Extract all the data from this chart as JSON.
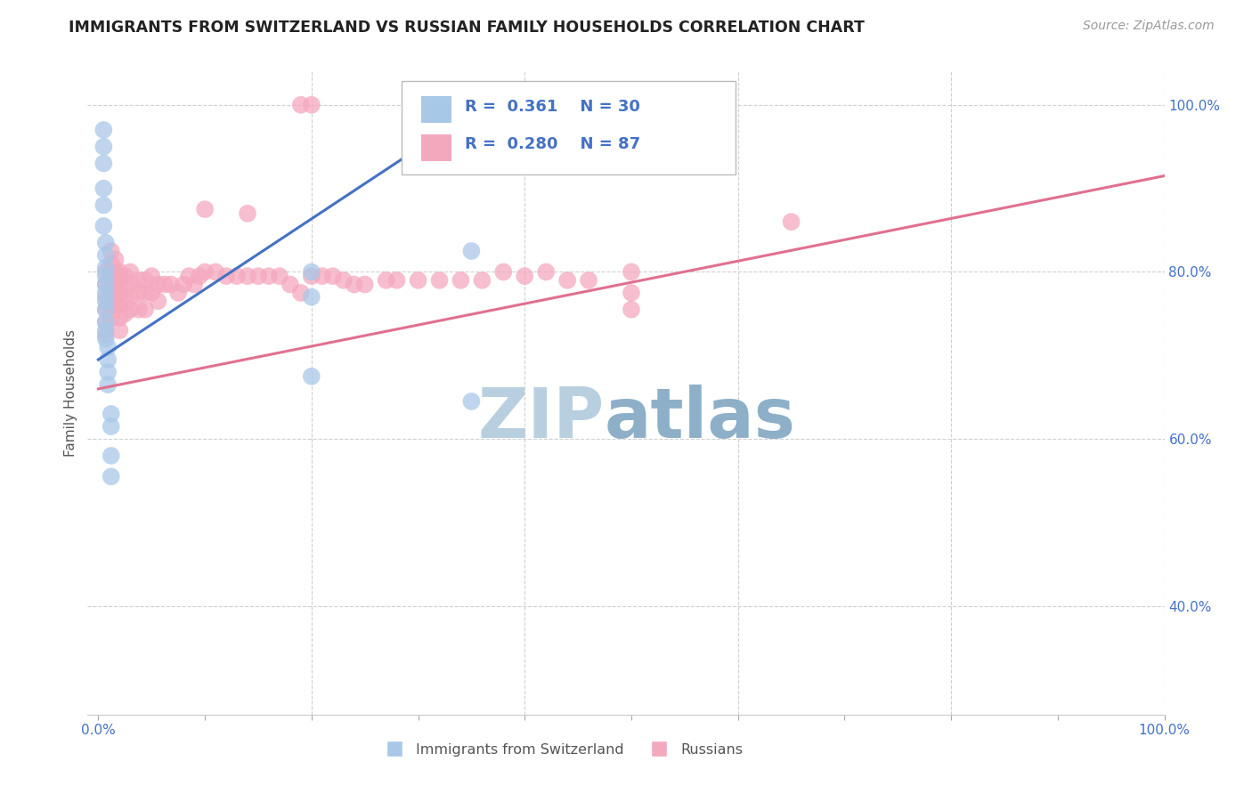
{
  "title": "IMMIGRANTS FROM SWITZERLAND VS RUSSIAN FAMILY HOUSEHOLDS CORRELATION CHART",
  "source": "Source: ZipAtlas.com",
  "ylabel": "Family Households",
  "legend_blue_R": "R =  0.361",
  "legend_blue_N": "N = 30",
  "legend_pink_R": "R =  0.280",
  "legend_pink_N": "N = 87",
  "blue_color": "#a8c8e8",
  "pink_color": "#f4a8be",
  "trendline_blue": "#4472c4",
  "trendline_pink": "#e07090",
  "legend_text_color": "#4472c4",
  "right_axis_color": "#4472c4",
  "title_color": "#222222",
  "source_color": "#999999",
  "watermark_color_zip": "#b8cfe0",
  "watermark_color_atlas": "#8db0c8",
  "grid_color": "#d0d0d0",
  "blue_trend_x0": 0.0,
  "blue_trend_y0": 0.695,
  "blue_trend_x1": 0.35,
  "blue_trend_y1": 0.99,
  "pink_trend_x0": 0.0,
  "pink_trend_y0": 0.66,
  "pink_trend_x1": 1.0,
  "pink_trend_y1": 0.915,
  "blue_x": [
    0.005,
    0.005,
    0.005,
    0.005,
    0.005,
    0.005,
    0.007,
    0.007,
    0.007,
    0.007,
    0.007,
    0.007,
    0.007,
    0.007,
    0.007,
    0.007,
    0.007,
    0.009,
    0.009,
    0.009,
    0.009,
    0.012,
    0.012,
    0.012,
    0.012,
    0.2,
    0.2,
    0.2,
    0.35,
    0.35
  ],
  "blue_y": [
    0.97,
    0.95,
    0.93,
    0.9,
    0.88,
    0.855,
    0.835,
    0.82,
    0.805,
    0.795,
    0.785,
    0.775,
    0.765,
    0.755,
    0.74,
    0.73,
    0.72,
    0.71,
    0.695,
    0.68,
    0.665,
    0.63,
    0.615,
    0.58,
    0.555,
    0.8,
    0.77,
    0.675,
    0.825,
    0.645
  ],
  "pink_x": [
    0.19,
    0.2,
    0.35,
    0.35,
    0.14,
    0.1,
    0.65,
    0.5,
    0.5,
    0.007,
    0.007,
    0.007,
    0.007,
    0.007,
    0.007,
    0.012,
    0.012,
    0.012,
    0.012,
    0.012,
    0.012,
    0.012,
    0.012,
    0.016,
    0.016,
    0.016,
    0.016,
    0.016,
    0.02,
    0.02,
    0.02,
    0.02,
    0.02,
    0.02,
    0.025,
    0.025,
    0.025,
    0.025,
    0.03,
    0.03,
    0.03,
    0.03,
    0.038,
    0.038,
    0.038,
    0.044,
    0.044,
    0.044,
    0.05,
    0.05,
    0.056,
    0.056,
    0.062,
    0.068,
    0.075,
    0.08,
    0.085,
    0.09,
    0.095,
    0.1,
    0.11,
    0.12,
    0.13,
    0.14,
    0.15,
    0.16,
    0.17,
    0.18,
    0.19,
    0.2,
    0.21,
    0.22,
    0.23,
    0.24,
    0.25,
    0.27,
    0.28,
    0.3,
    0.32,
    0.34,
    0.36,
    0.38,
    0.4,
    0.42,
    0.44,
    0.46,
    0.5
  ],
  "pink_y": [
    1.0,
    1.0,
    1.0,
    0.985,
    0.87,
    0.875,
    0.86,
    0.775,
    0.755,
    0.8,
    0.785,
    0.77,
    0.755,
    0.74,
    0.725,
    0.825,
    0.81,
    0.8,
    0.79,
    0.78,
    0.77,
    0.76,
    0.745,
    0.815,
    0.8,
    0.79,
    0.775,
    0.76,
    0.8,
    0.79,
    0.775,
    0.76,
    0.745,
    0.73,
    0.795,
    0.78,
    0.765,
    0.75,
    0.8,
    0.785,
    0.77,
    0.755,
    0.79,
    0.775,
    0.755,
    0.79,
    0.775,
    0.755,
    0.795,
    0.775,
    0.785,
    0.765,
    0.785,
    0.785,
    0.775,
    0.785,
    0.795,
    0.785,
    0.795,
    0.8,
    0.8,
    0.795,
    0.795,
    0.795,
    0.795,
    0.795,
    0.795,
    0.785,
    0.775,
    0.795,
    0.795,
    0.795,
    0.79,
    0.785,
    0.785,
    0.79,
    0.79,
    0.79,
    0.79,
    0.79,
    0.79,
    0.8,
    0.795,
    0.8,
    0.79,
    0.79,
    0.8
  ],
  "xlim": [
    -0.01,
    1.0
  ],
  "ylim": [
    0.27,
    1.04
  ],
  "xticks": [
    0.0,
    0.1,
    0.2,
    0.3,
    0.4,
    0.5,
    0.6,
    0.7,
    0.8,
    0.9,
    1.0
  ],
  "yticks_right": [
    0.4,
    0.6,
    0.8,
    1.0
  ],
  "ytick_labels_right": [
    "40.0%",
    "60.0%",
    "80.0%",
    "100.0%"
  ]
}
